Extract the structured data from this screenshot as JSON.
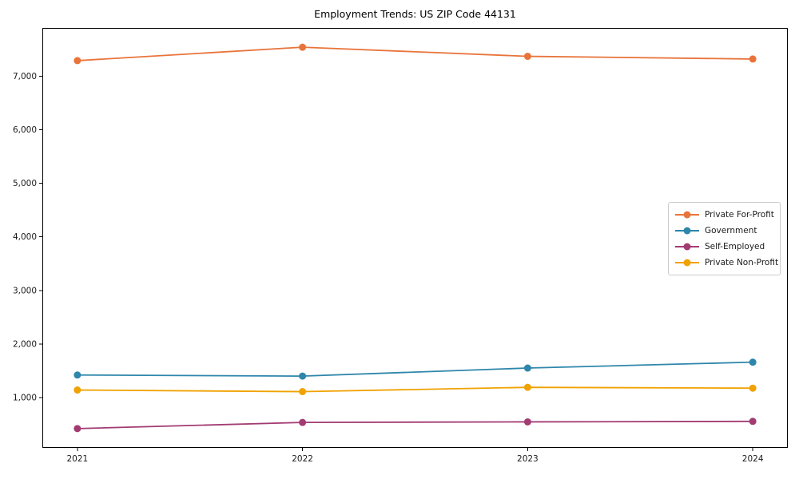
{
  "title": "Employment Trends: US ZIP Code 44131",
  "chart_data": {
    "type": "line",
    "categories": [
      "2021",
      "2022",
      "2023",
      "2024"
    ],
    "series": [
      {
        "name": "Private For-Profit",
        "color": "#E8743B",
        "values": [
          7290,
          7540,
          7370,
          7320
        ]
      },
      {
        "name": "Government",
        "color": "#2E86AB",
        "values": [
          1420,
          1400,
          1550,
          1660
        ]
      },
      {
        "name": "Self-Employed",
        "color": "#A23B72",
        "values": [
          420,
          535,
          545,
          555
        ]
      },
      {
        "name": "Private Non-Profit",
        "color": "#F0A202",
        "values": [
          1140,
          1110,
          1190,
          1175
        ]
      }
    ],
    "yticks": [
      1000,
      2000,
      3000,
      4000,
      5000,
      6000,
      7000
    ],
    "ylim": [
      60,
      7900
    ],
    "xlabel": "",
    "ylabel": "",
    "grid": false,
    "marker": "circle",
    "legend_position": "center right",
    "axis_color": "#000000"
  }
}
